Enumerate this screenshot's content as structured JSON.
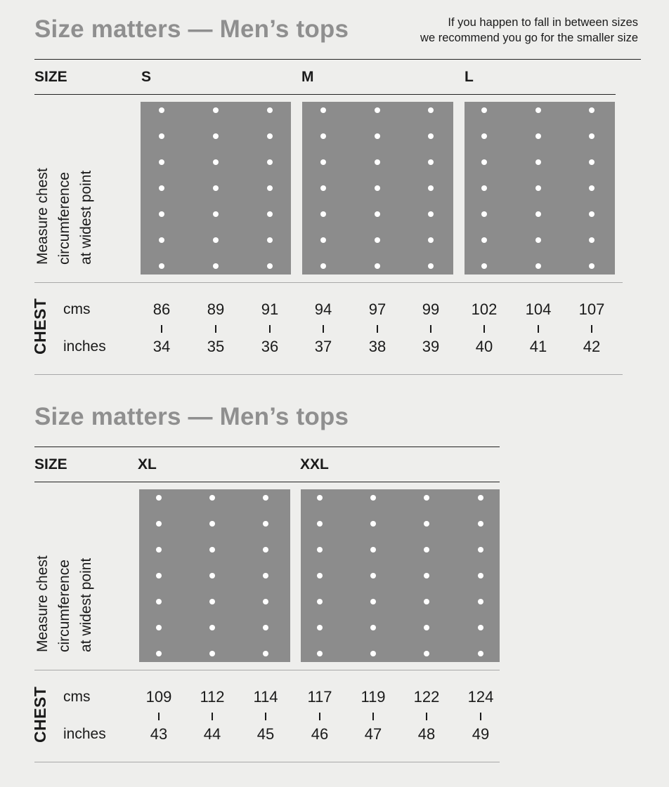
{
  "note": {
    "line1": "If you happen to fall in between sizes",
    "line2": "we recommend you go for the smaller size"
  },
  "tables": [
    {
      "title": "Size matters — Men’s tops",
      "size_label": "SIZE",
      "measure_label": [
        "Measure chest",
        "circumference",
        "at widest point"
      ],
      "chest_label": "CHEST",
      "unit_cm": "cms",
      "unit_in": "inches",
      "sizes": [
        "S",
        "M",
        "L"
      ],
      "cms": [
        "86",
        "89",
        "91",
        "94",
        "97",
        "99",
        "102",
        "104",
        "107"
      ],
      "inches": [
        "34",
        "35",
        "36",
        "37",
        "38",
        "39",
        "40",
        "41",
        "42"
      ]
    },
    {
      "title": "Size matters — Men’s tops",
      "size_label": "SIZE",
      "measure_label": [
        "Measure chest",
        "circumference",
        "at widest point"
      ],
      "chest_label": "CHEST",
      "unit_cm": "cms",
      "unit_in": "inches",
      "sizes": [
        "XL",
        "XXL"
      ],
      "cms": [
        "109",
        "112",
        "114",
        "117",
        "119",
        "122",
        "124"
      ],
      "inches": [
        "43",
        "44",
        "45",
        "46",
        "47",
        "48",
        "49"
      ]
    }
  ],
  "colors": {
    "background": "#eeeeec",
    "title": "#8f8f8f",
    "panel": "#8c8c8c",
    "dot": "#ffffff",
    "text": "#1a1a1a"
  }
}
